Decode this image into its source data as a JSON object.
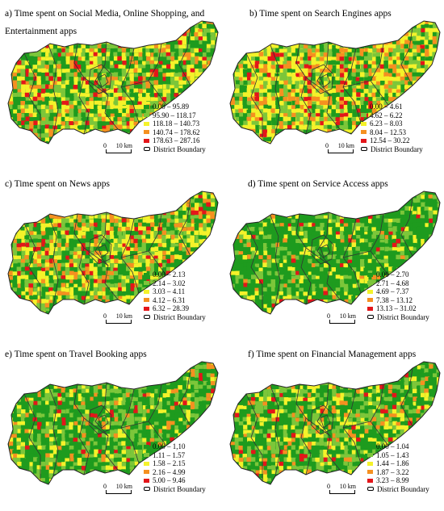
{
  "colors": {
    "class1": "#1e9b1e",
    "class2": "#7cc63a",
    "class3": "#f4f22a",
    "class4": "#f59020",
    "class5": "#e3161a"
  },
  "panels": [
    {
      "title": "a) Time spent on Social Media, Online Shopping, and Entertainment apps",
      "legend": [
        "0.00 – 95.89",
        "95.90 – 118.17",
        "118.18 – 140.73",
        "140.74 – 178.62",
        "178.63 – 287.16"
      ],
      "mix": [
        0.3,
        0.22,
        0.28,
        0.12,
        0.08
      ]
    },
    {
      "title": "b) Time spent on Search Engines apps",
      "legend": [
        "0.00 – 4.61",
        "4.62 – 6.22",
        "6.23 – 8.03",
        "8.04 – 12.53",
        "12.54 – 30.22"
      ],
      "mix": [
        0.22,
        0.22,
        0.3,
        0.18,
        0.08
      ]
    },
    {
      "title": "c) Time spent on News apps",
      "legend": [
        "0.00 – 2.13",
        "2.14 – 3.02",
        "3.03 – 4.11",
        "4.12 – 6.31",
        "6.32 – 28.39"
      ],
      "mix": [
        0.3,
        0.22,
        0.26,
        0.15,
        0.07
      ]
    },
    {
      "title": "d) Time spent on Service Access apps",
      "legend": [
        "0.00 – 2.70",
        "2.71 – 4.68",
        "4.69 – 7.37",
        "7.38 – 13.12",
        "13.13 – 31.02"
      ],
      "mix": [
        0.62,
        0.2,
        0.12,
        0.04,
        0.02
      ]
    },
    {
      "title": "e) Time spent on Travel Booking apps",
      "legend": [
        "0.00 – 1,10",
        "1.11 – 1.57",
        "1.58 – 2.15",
        "2.16 – 4.99",
        "5.00 – 9.46"
      ],
      "mix": [
        0.5,
        0.26,
        0.14,
        0.07,
        0.03
      ]
    },
    {
      "title": "f) Time spent on Financial Management apps",
      "legend": [
        "0.00 – 1.04",
        "1.05 – 1.43",
        "1.44 – 1.86",
        "1.87 – 3.22",
        "3.23 – 8.99"
      ],
      "mix": [
        0.44,
        0.26,
        0.18,
        0.08,
        0.04
      ]
    }
  ],
  "legend_boundary_label": "District Boundary",
  "scale": {
    "start": "0",
    "end": "10 km"
  }
}
